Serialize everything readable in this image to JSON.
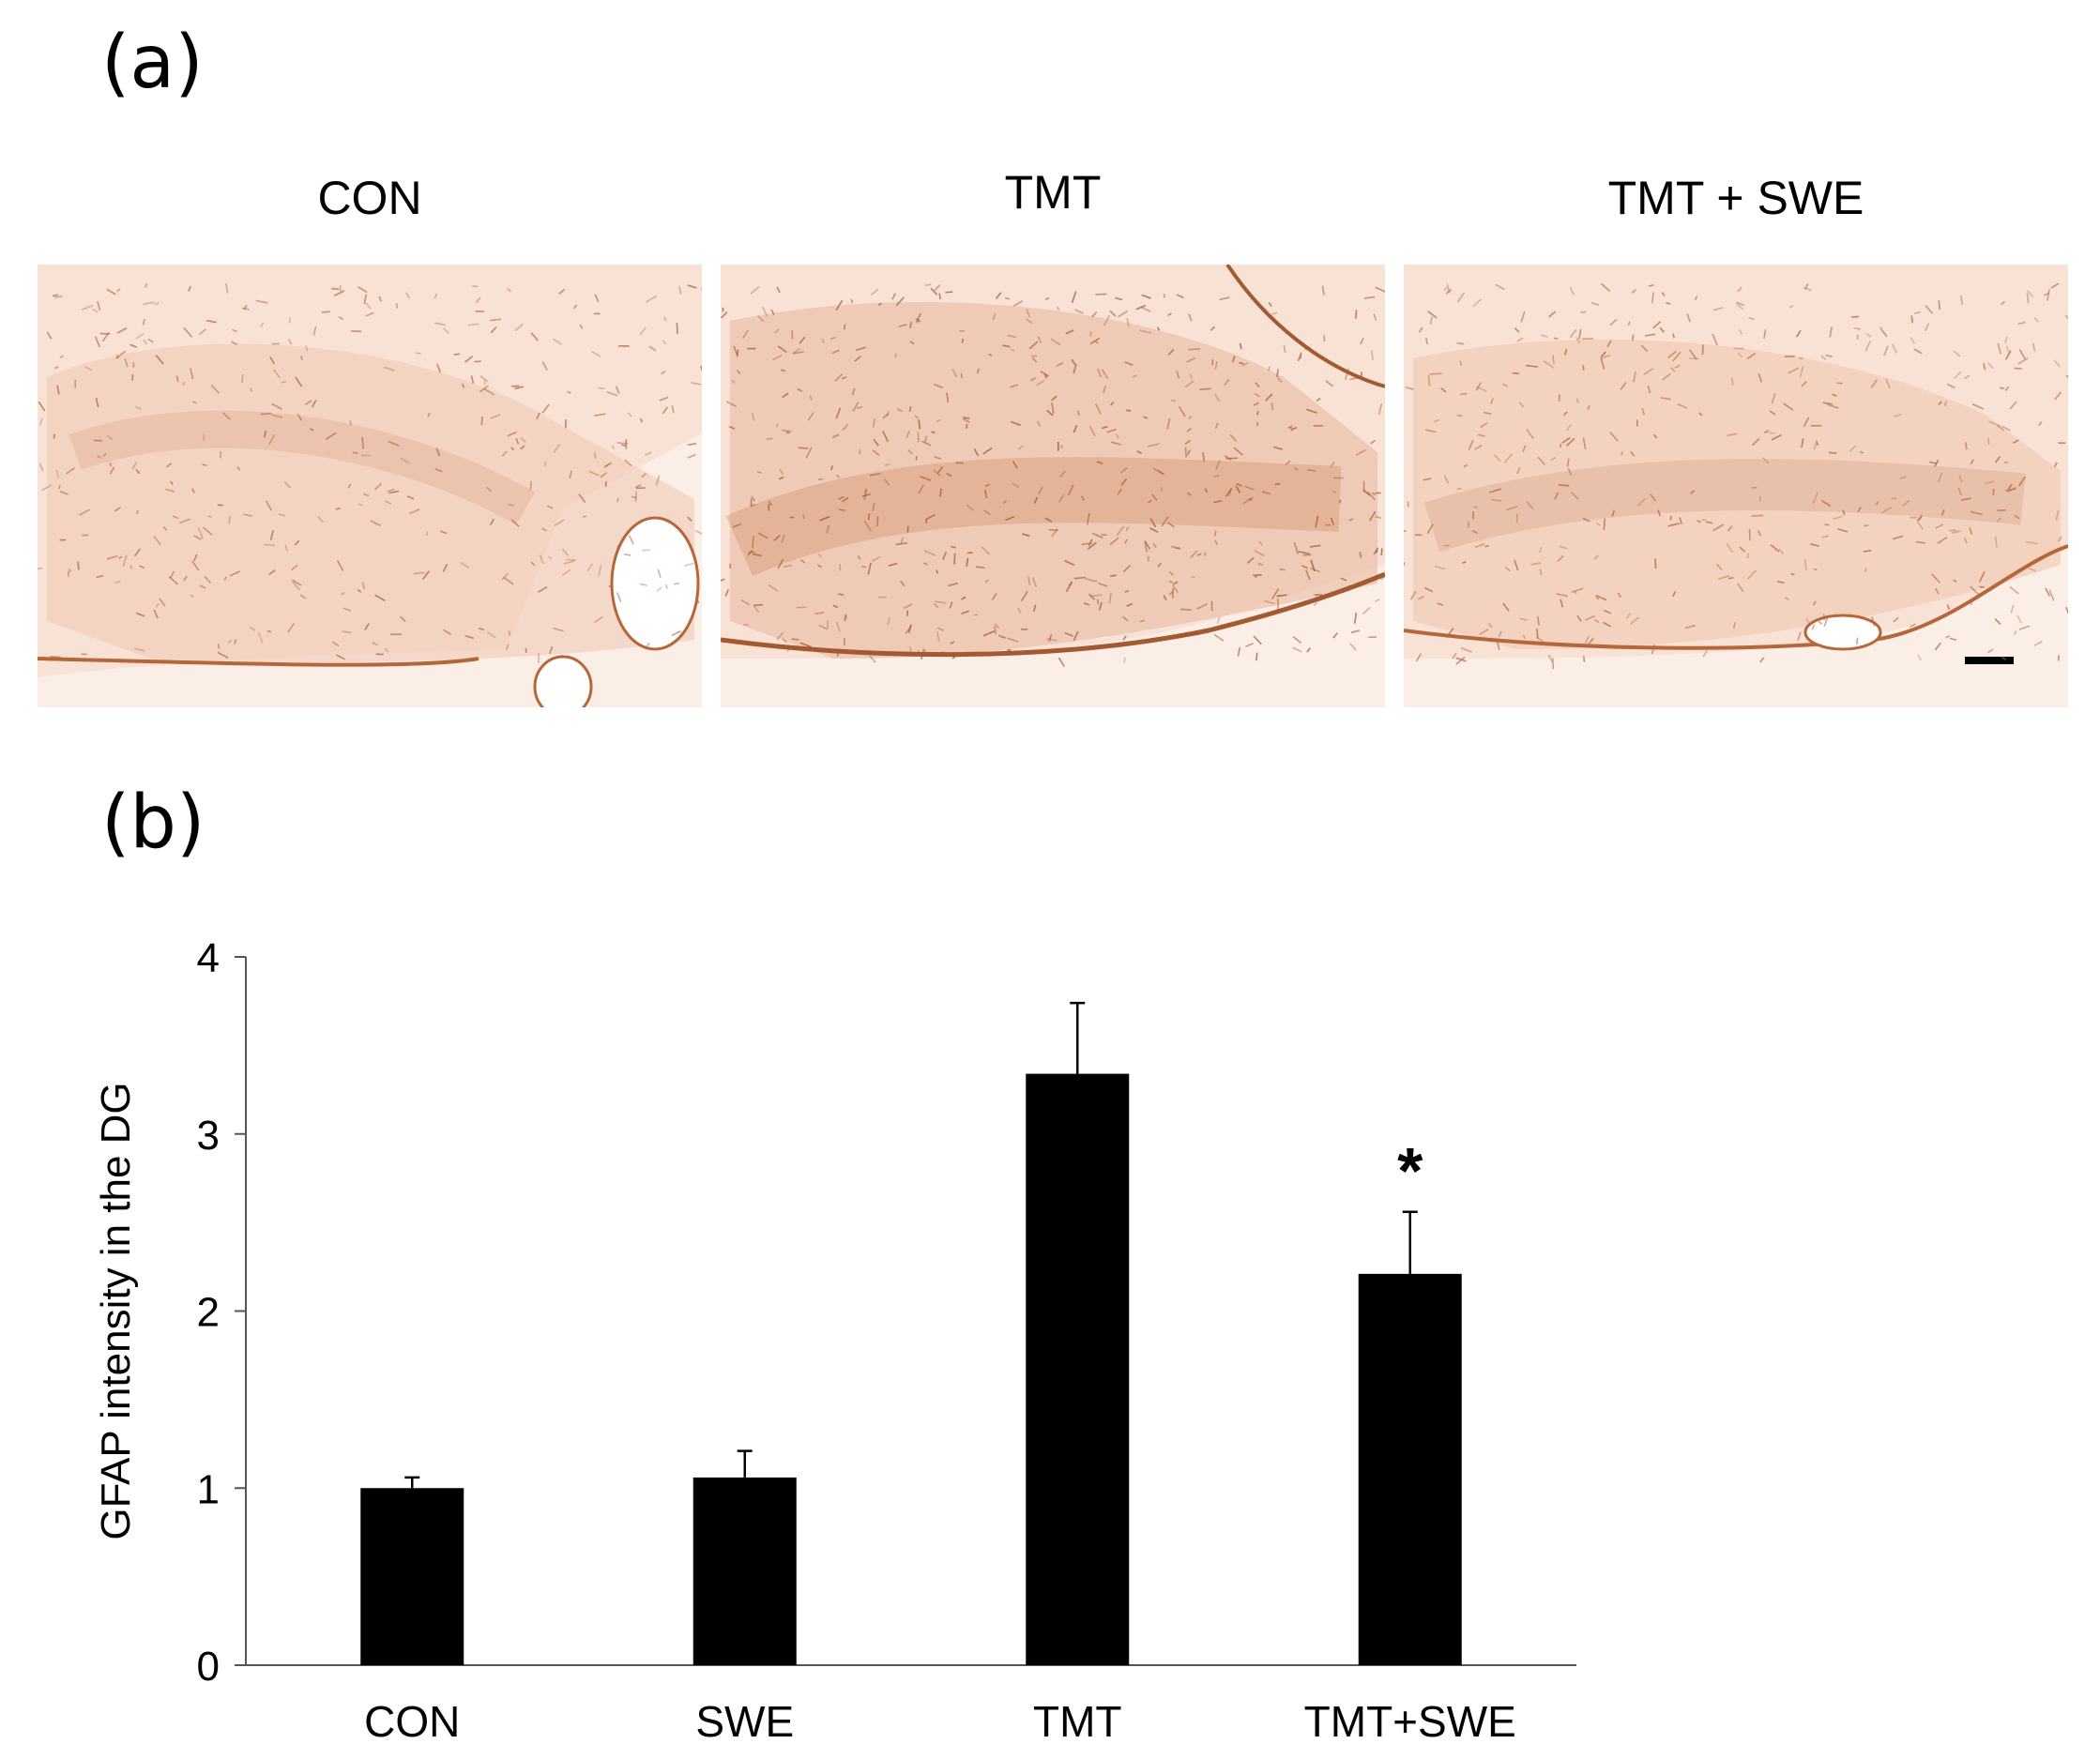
{
  "figure": {
    "panel_a_label": "(a)",
    "panel_b_label": "(b)",
    "micrographs": [
      {
        "title": "CON"
      },
      {
        "title": "TMT"
      },
      {
        "title": "TMT + SWE"
      }
    ],
    "colors": {
      "tissue_background": "#f8e2d6",
      "stain": "#b5673a",
      "bar_fill": "#000000"
    }
  },
  "chart_data": {
    "type": "bar",
    "categories": [
      "CON",
      "SWE",
      "TMT",
      "TMT+SWE"
    ],
    "values": [
      1.0,
      1.06,
      3.34,
      2.21
    ],
    "errors": [
      0.06,
      0.15,
      0.4,
      0.35
    ],
    "annotations": [
      "",
      "",
      "",
      "*"
    ],
    "title": "",
    "xlabel": "",
    "ylabel": "GFAP  intensity in the DG",
    "ylim": [
      0,
      4
    ],
    "yticks": [
      "0",
      "1",
      "2",
      "3",
      "4"
    ],
    "grid": false,
    "legend": "none"
  }
}
